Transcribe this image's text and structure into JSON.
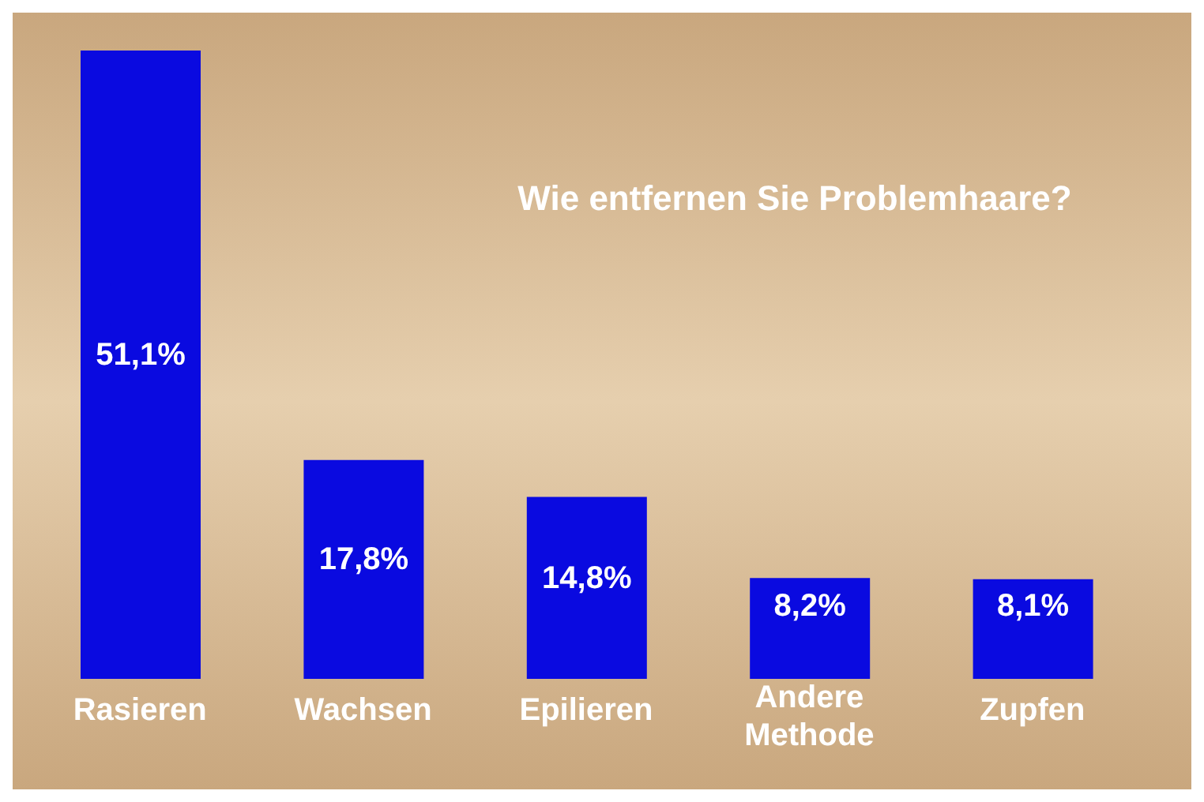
{
  "chart_data": {
    "type": "bar",
    "title": "Wie entfernen Sie Problemhaare?",
    "categories": [
      "Rasieren",
      "Wachsen",
      "Epilieren",
      "Andere Methode",
      "Zupfen"
    ],
    "values": [
      51.1,
      17.8,
      14.8,
      8.2,
      8.1
    ],
    "value_labels": [
      "51,1%",
      "17,8%",
      "14,8%",
      "8,2%",
      "8,1%"
    ],
    "color": "#0a0ae0"
  }
}
